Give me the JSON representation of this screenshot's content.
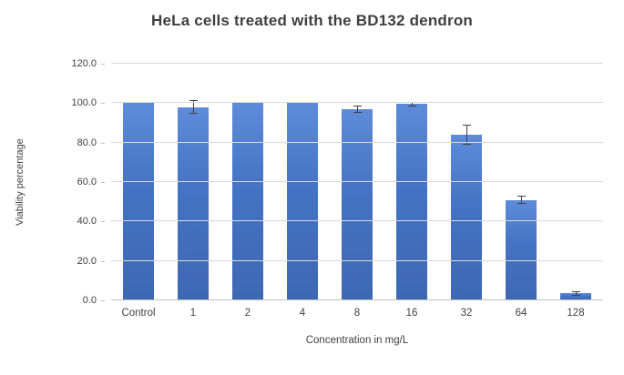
{
  "chart_data": {
    "type": "bar",
    "title": "HeLa cells treated with the BD132 dendron",
    "xlabel": "Concentration in mg/L",
    "ylabel": "Viability percentage",
    "categories": [
      "Control",
      "1",
      "2",
      "4",
      "8",
      "16",
      "32",
      "64",
      "128"
    ],
    "values": [
      100,
      98,
      100,
      100,
      97,
      99.5,
      84,
      51,
      3.5
    ],
    "errors": [
      0,
      3.5,
      0,
      0,
      2,
      1,
      5,
      2,
      1
    ],
    "ylim": [
      0,
      120
    ],
    "yticks": [
      0,
      20,
      40,
      60,
      80,
      100,
      120
    ],
    "ytick_labels": [
      "0.0",
      "20.0",
      "40.0",
      "60.0",
      "80.0",
      "100.0",
      "120.0"
    ],
    "grid": true,
    "legend": false,
    "bar_color": "#4472C4",
    "bar_gradient_top": "#5E8BD9",
    "bar_gradient_bottom": "#3E68B2",
    "error_bar_color": "#404040",
    "gridline_color": "#D9D9D9",
    "axis_line_color": "#BFBFBF"
  }
}
